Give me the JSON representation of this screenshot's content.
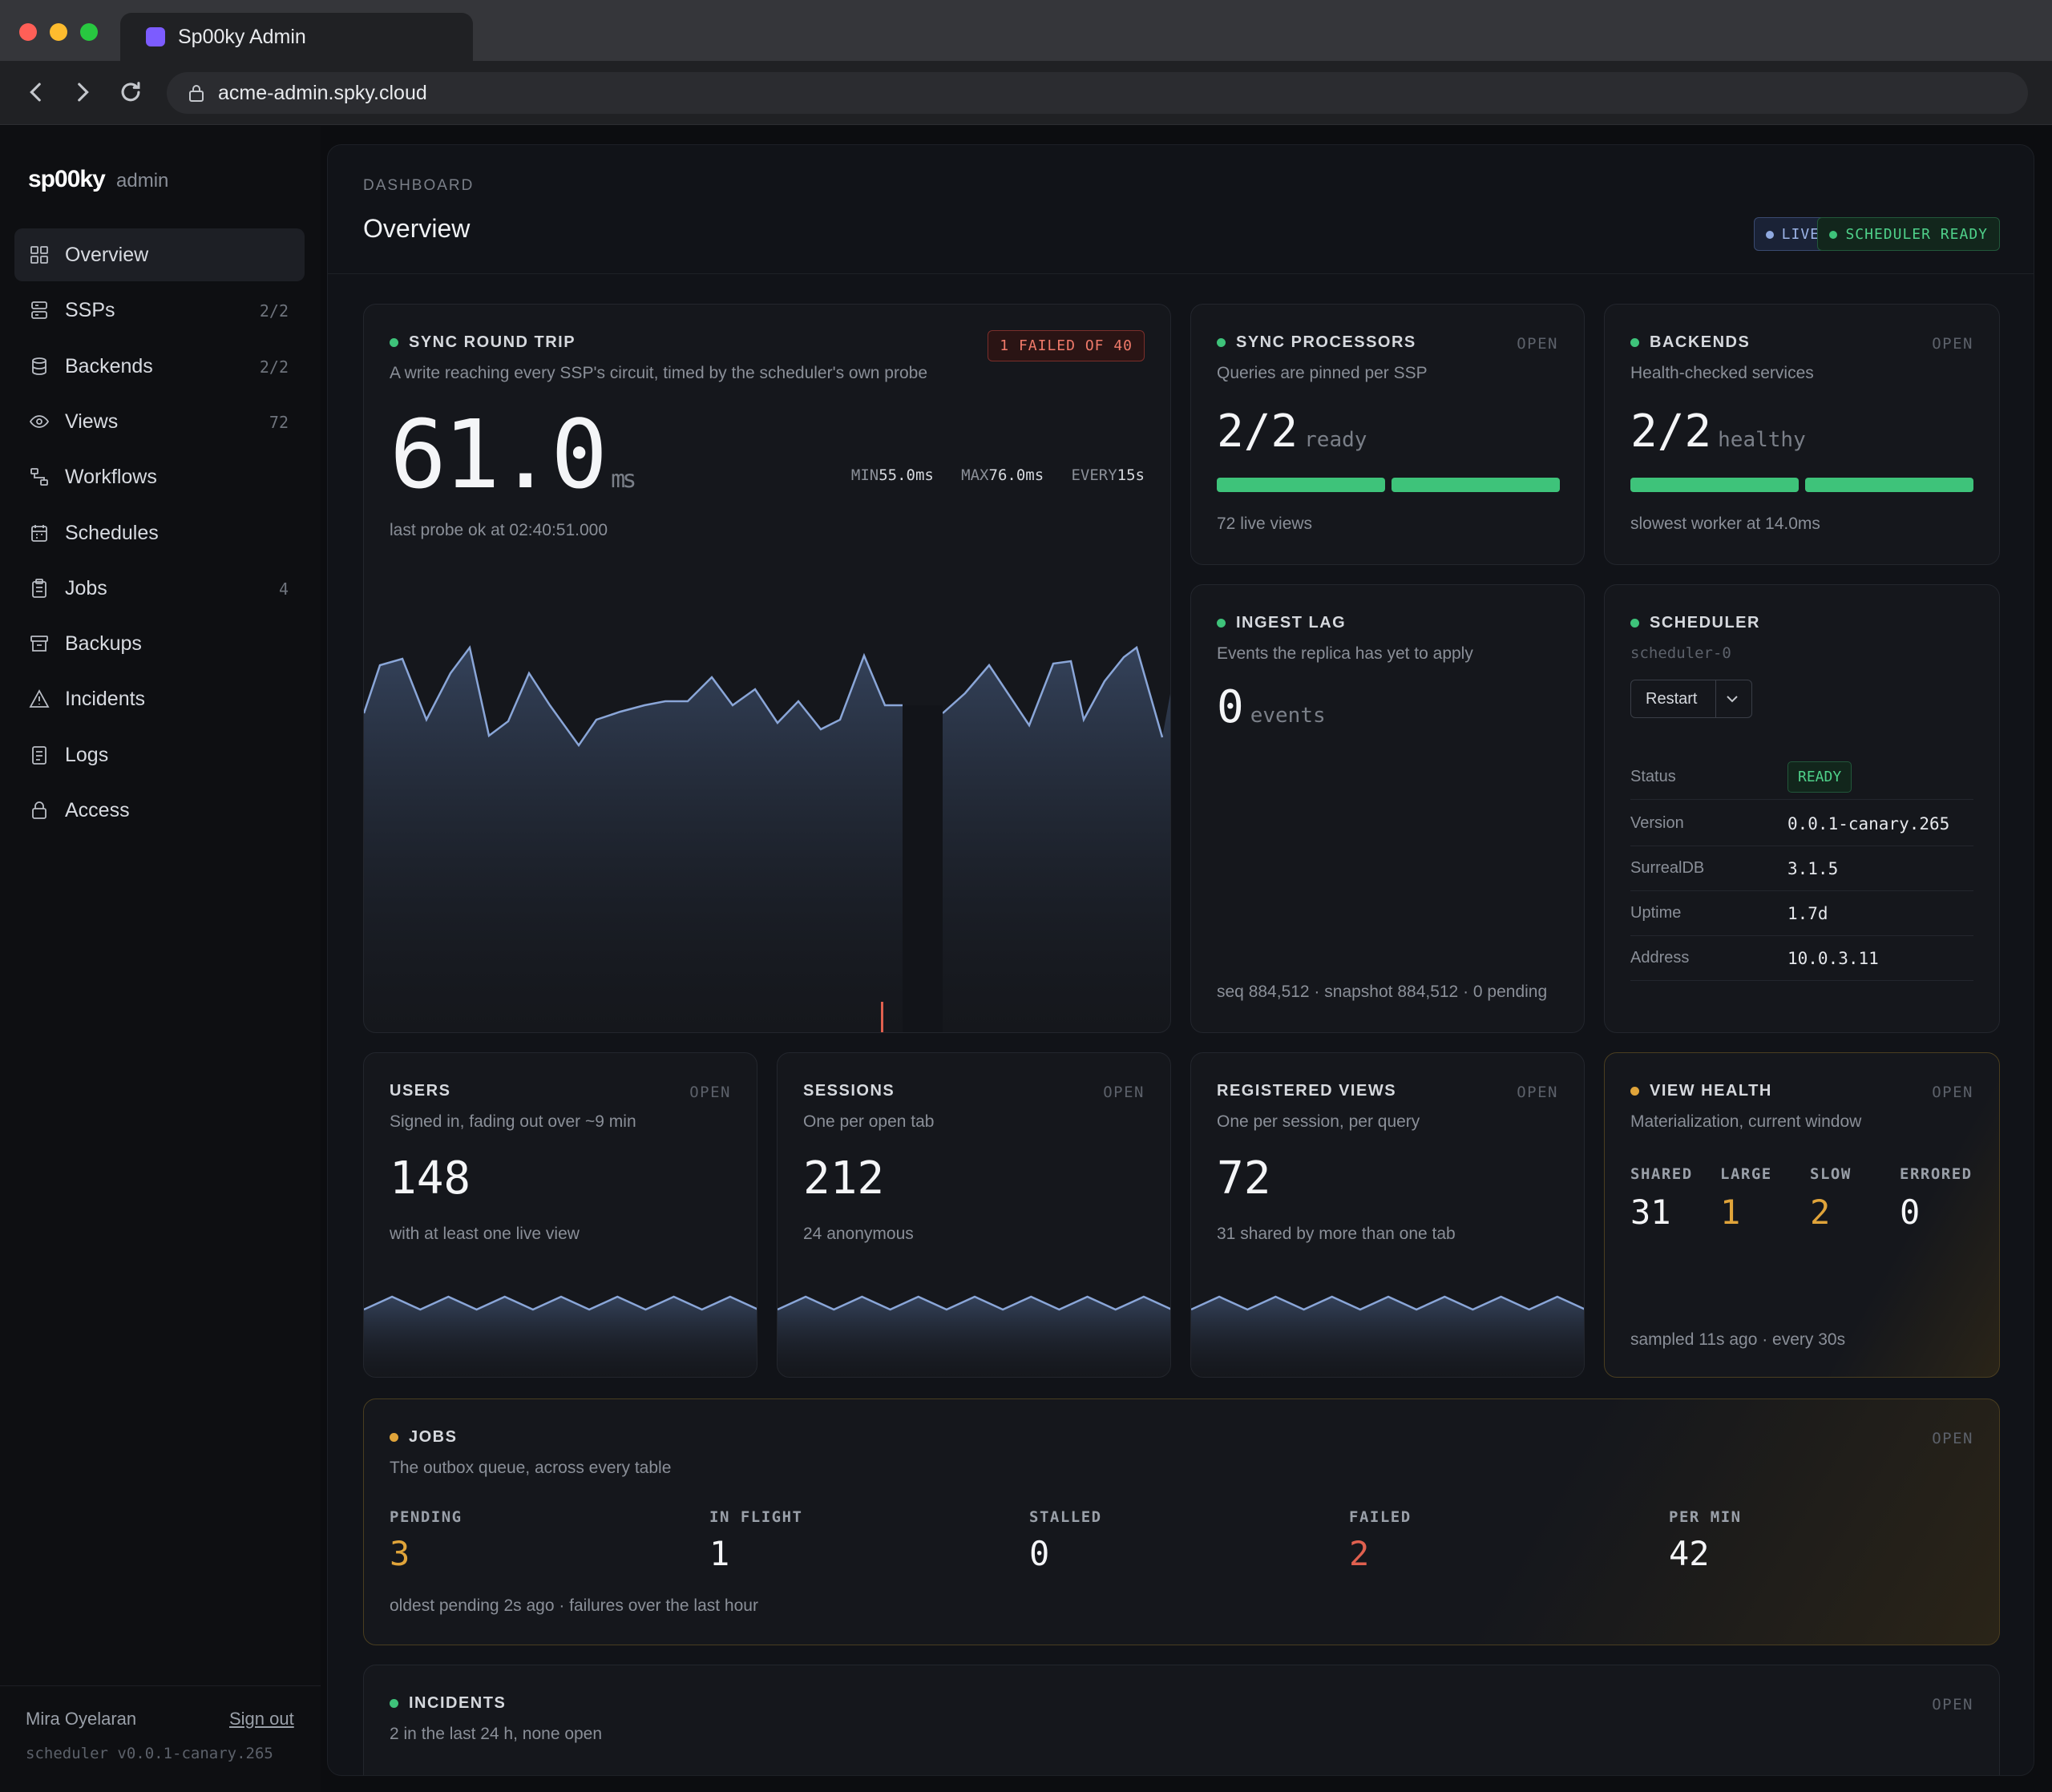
{
  "browser": {
    "tab_title": "Sp00ky Admin",
    "url": "acme-admin.spky.cloud"
  },
  "sidebar": {
    "brand": "sp00ky",
    "brand_sub": "admin",
    "items": [
      {
        "label": "Overview",
        "count": "",
        "icon": "grid-icon"
      },
      {
        "label": "SSPs",
        "count": "2/2",
        "icon": "server-icon"
      },
      {
        "label": "Backends",
        "count": "2/2",
        "icon": "database-icon"
      },
      {
        "label": "Views",
        "count": "72",
        "icon": "eye-icon"
      },
      {
        "label": "Workflows",
        "count": "",
        "icon": "workflow-icon"
      },
      {
        "label": "Schedules",
        "count": "",
        "icon": "calendar-icon"
      },
      {
        "label": "Jobs",
        "count": "4",
        "icon": "clipboard-icon"
      },
      {
        "label": "Backups",
        "count": "",
        "icon": "archive-icon"
      },
      {
        "label": "Incidents",
        "count": "",
        "icon": "warning-icon"
      },
      {
        "label": "Logs",
        "count": "",
        "icon": "file-icon"
      },
      {
        "label": "Access",
        "count": "",
        "icon": "lock-icon"
      }
    ],
    "user": "Mira Oyelaran",
    "signout": "Sign out",
    "version": "scheduler v0.0.1-canary.265"
  },
  "header": {
    "breadcrumb": "DASHBOARD",
    "title": "Overview",
    "live": "LIVE",
    "scheduler_ready": "SCHEDULER READY"
  },
  "sync_round_trip": {
    "title": "SYNC ROUND TRIP",
    "subtitle": "A write reaching every SSP's circuit, timed by the scheduler's own probe",
    "failed_badge": "1 FAILED OF 40",
    "value": "61.0",
    "unit": "ms",
    "min_label": "MIN",
    "min": "55.0ms",
    "max_label": "MAX",
    "max": "76.0ms",
    "every_label": "EVERY",
    "every": "15s",
    "last_probe": "last probe ok at 02:40:51.000"
  },
  "sync_processors": {
    "title": "SYNC PROCESSORS",
    "open": "OPEN",
    "subtitle": "Queries are pinned per SSP",
    "value": "2/2",
    "unit": "ready",
    "footer": "72 live views"
  },
  "backends": {
    "title": "BACKENDS",
    "open": "OPEN",
    "subtitle": "Health-checked services",
    "value": "2/2",
    "unit": "healthy",
    "footer": "slowest worker at 14.0ms"
  },
  "ingest_lag": {
    "title": "INGEST LAG",
    "subtitle": "Events the replica has yet to apply",
    "value": "0",
    "unit": "events",
    "footer": "seq 884,512 · snapshot 884,512 · 0 pending"
  },
  "scheduler": {
    "title": "SCHEDULER",
    "instance": "scheduler-0",
    "restart": "Restart",
    "rows": [
      {
        "key": "Status",
        "value": "READY"
      },
      {
        "key": "Version",
        "value": "0.0.1-canary.265"
      },
      {
        "key": "SurrealDB",
        "value": "3.1.5"
      },
      {
        "key": "Uptime",
        "value": "1.7d"
      },
      {
        "key": "Address",
        "value": "10.0.3.11"
      }
    ]
  },
  "users": {
    "title": "USERS",
    "open": "OPEN",
    "subtitle": "Signed in, fading out over ~9 min",
    "value": "148",
    "footer": "with at least one live view"
  },
  "sessions": {
    "title": "SESSIONS",
    "open": "OPEN",
    "subtitle": "One per open tab",
    "value": "212",
    "footer": "24 anonymous"
  },
  "registered_views": {
    "title": "REGISTERED VIEWS",
    "open": "OPEN",
    "subtitle": "One per session, per query",
    "value": "72",
    "footer": "31 shared by more than one tab"
  },
  "view_health": {
    "title": "VIEW HEALTH",
    "open": "OPEN",
    "subtitle": "Materialization, current window",
    "stats": [
      {
        "label": "SHARED",
        "value": "31"
      },
      {
        "label": "LARGE",
        "value": "1"
      },
      {
        "label": "SLOW",
        "value": "2"
      },
      {
        "label": "ERRORED",
        "value": "0"
      }
    ],
    "footer": "sampled 11s ago · every 30s"
  },
  "jobs": {
    "title": "JOBS",
    "open": "OPEN",
    "subtitle": "The outbox queue, across every table",
    "stats": [
      {
        "label": "PENDING",
        "value": "3"
      },
      {
        "label": "IN FLIGHT",
        "value": "1"
      },
      {
        "label": "STALLED",
        "value": "0"
      },
      {
        "label": "FAILED",
        "value": "2"
      },
      {
        "label": "PER MIN",
        "value": "42"
      }
    ],
    "footer": "oldest pending 2s ago · failures over the last hour"
  },
  "incidents": {
    "title": "INCIDENTS",
    "open": "OPEN",
    "subtitle": "2 in the last 24 h, none open"
  },
  "colors": {
    "ok": "#3ec37a",
    "warn": "#e0a43a",
    "error": "#e0604f",
    "accent": "#7c5cff"
  }
}
